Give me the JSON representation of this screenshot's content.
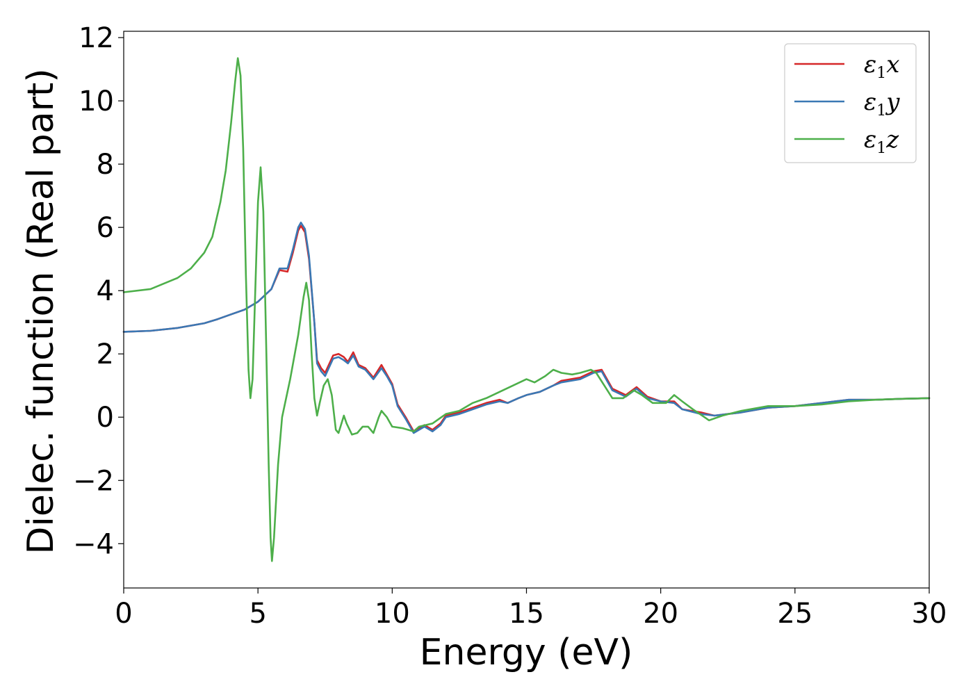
{
  "chart_data": {
    "type": "line",
    "title": "",
    "xlabel": "Energy (eV)",
    "ylabel": "Dielec. function (Real part)",
    "xlim": [
      0,
      30
    ],
    "ylim": [
      -5.4,
      12.2
    ],
    "xticks": [
      0,
      5,
      10,
      15,
      20,
      25,
      30
    ],
    "yticks": [
      -4,
      -2,
      0,
      2,
      4,
      6,
      8,
      10,
      12
    ],
    "ytick_labels": [
      "−4",
      "−2",
      "0",
      "2",
      "4",
      "6",
      "8",
      "10",
      "12"
    ],
    "grid": false,
    "legend_position": "top-right",
    "series": [
      {
        "name": "x",
        "legend_symbol": "ε",
        "legend_sub": "1",
        "color": "#d62728",
        "points": [
          [
            0,
            2.7
          ],
          [
            1,
            2.73
          ],
          [
            2,
            2.82
          ],
          [
            3,
            2.97
          ],
          [
            3.5,
            3.1
          ],
          [
            4,
            3.25
          ],
          [
            4.5,
            3.4
          ],
          [
            5,
            3.65
          ],
          [
            5.5,
            4.05
          ],
          [
            5.8,
            4.65
          ],
          [
            6.1,
            4.6
          ],
          [
            6.3,
            5.2
          ],
          [
            6.5,
            5.9
          ],
          [
            6.6,
            6.05
          ],
          [
            6.75,
            5.85
          ],
          [
            6.9,
            5.0
          ],
          [
            7.1,
            3.0
          ],
          [
            7.2,
            1.8
          ],
          [
            7.35,
            1.55
          ],
          [
            7.5,
            1.4
          ],
          [
            7.8,
            1.95
          ],
          [
            8.0,
            2.0
          ],
          [
            8.2,
            1.9
          ],
          [
            8.35,
            1.75
          ],
          [
            8.55,
            2.05
          ],
          [
            8.75,
            1.65
          ],
          [
            9.0,
            1.55
          ],
          [
            9.3,
            1.25
          ],
          [
            9.6,
            1.65
          ],
          [
            9.8,
            1.35
          ],
          [
            10.0,
            1.05
          ],
          [
            10.2,
            0.4
          ],
          [
            10.5,
            0.0
          ],
          [
            10.8,
            -0.45
          ],
          [
            11.0,
            -0.35
          ],
          [
            11.2,
            -0.25
          ],
          [
            11.5,
            -0.4
          ],
          [
            11.8,
            -0.2
          ],
          [
            12.0,
            0.05
          ],
          [
            12.5,
            0.15
          ],
          [
            13.0,
            0.3
          ],
          [
            13.5,
            0.45
          ],
          [
            14.0,
            0.55
          ],
          [
            14.3,
            0.45
          ],
          [
            14.7,
            0.6
          ],
          [
            15.0,
            0.7
          ],
          [
            15.5,
            0.8
          ],
          [
            16.0,
            1.0
          ],
          [
            16.3,
            1.15
          ],
          [
            17.0,
            1.25
          ],
          [
            17.5,
            1.45
          ],
          [
            17.8,
            1.5
          ],
          [
            18.2,
            0.9
          ],
          [
            18.7,
            0.7
          ],
          [
            19.1,
            0.95
          ],
          [
            19.5,
            0.65
          ],
          [
            20.0,
            0.5
          ],
          [
            20.5,
            0.5
          ],
          [
            20.8,
            0.25
          ],
          [
            21.5,
            0.15
          ],
          [
            22.0,
            0.05
          ],
          [
            22.5,
            0.1
          ],
          [
            23.0,
            0.15
          ],
          [
            24.0,
            0.3
          ],
          [
            25.0,
            0.35
          ],
          [
            26.0,
            0.45
          ],
          [
            27.0,
            0.55
          ],
          [
            28.0,
            0.55
          ],
          [
            29.0,
            0.58
          ],
          [
            30.0,
            0.6
          ]
        ]
      },
      {
        "name": "y",
        "legend_symbol": "ε",
        "legend_sub": "1",
        "color": "#3a78b4",
        "points": [
          [
            0,
            2.7
          ],
          [
            1,
            2.73
          ],
          [
            2,
            2.82
          ],
          [
            3,
            2.97
          ],
          [
            3.5,
            3.1
          ],
          [
            4,
            3.25
          ],
          [
            4.5,
            3.4
          ],
          [
            5,
            3.65
          ],
          [
            5.5,
            4.05
          ],
          [
            5.8,
            4.7
          ],
          [
            6.1,
            4.7
          ],
          [
            6.3,
            5.3
          ],
          [
            6.5,
            6.0
          ],
          [
            6.6,
            6.15
          ],
          [
            6.75,
            5.95
          ],
          [
            6.9,
            5.1
          ],
          [
            7.1,
            3.0
          ],
          [
            7.2,
            1.7
          ],
          [
            7.35,
            1.45
          ],
          [
            7.5,
            1.3
          ],
          [
            7.8,
            1.85
          ],
          [
            8.0,
            1.9
          ],
          [
            8.2,
            1.8
          ],
          [
            8.35,
            1.7
          ],
          [
            8.55,
            1.95
          ],
          [
            8.75,
            1.6
          ],
          [
            9.0,
            1.5
          ],
          [
            9.3,
            1.2
          ],
          [
            9.6,
            1.55
          ],
          [
            9.8,
            1.3
          ],
          [
            10.0,
            1.0
          ],
          [
            10.2,
            0.35
          ],
          [
            10.5,
            -0.05
          ],
          [
            10.8,
            -0.5
          ],
          [
            11.0,
            -0.4
          ],
          [
            11.2,
            -0.3
          ],
          [
            11.5,
            -0.45
          ],
          [
            11.8,
            -0.25
          ],
          [
            12.0,
            0.0
          ],
          [
            12.5,
            0.1
          ],
          [
            13.0,
            0.25
          ],
          [
            13.5,
            0.4
          ],
          [
            14.0,
            0.5
          ],
          [
            14.3,
            0.45
          ],
          [
            14.7,
            0.6
          ],
          [
            15.0,
            0.7
          ],
          [
            15.5,
            0.8
          ],
          [
            16.0,
            1.0
          ],
          [
            16.3,
            1.1
          ],
          [
            17.0,
            1.2
          ],
          [
            17.5,
            1.4
          ],
          [
            17.8,
            1.45
          ],
          [
            18.2,
            0.85
          ],
          [
            18.7,
            0.65
          ],
          [
            19.1,
            0.9
          ],
          [
            19.5,
            0.6
          ],
          [
            20.0,
            0.5
          ],
          [
            20.5,
            0.45
          ],
          [
            20.8,
            0.25
          ],
          [
            21.5,
            0.1
          ],
          [
            22.0,
            0.05
          ],
          [
            22.5,
            0.1
          ],
          [
            23.0,
            0.15
          ],
          [
            24.0,
            0.3
          ],
          [
            25.0,
            0.35
          ],
          [
            26.0,
            0.45
          ],
          [
            27.0,
            0.55
          ],
          [
            28.0,
            0.55
          ],
          [
            29.0,
            0.58
          ],
          [
            30.0,
            0.6
          ]
        ]
      },
      {
        "name": "z",
        "legend_symbol": "ε",
        "legend_sub": "1",
        "color": "#4daf4a",
        "points": [
          [
            0,
            3.95
          ],
          [
            1,
            4.05
          ],
          [
            2,
            4.4
          ],
          [
            2.5,
            4.7
          ],
          [
            3.0,
            5.2
          ],
          [
            3.3,
            5.7
          ],
          [
            3.6,
            6.8
          ],
          [
            3.8,
            7.8
          ],
          [
            4.0,
            9.3
          ],
          [
            4.15,
            10.6
          ],
          [
            4.25,
            11.35
          ],
          [
            4.35,
            10.8
          ],
          [
            4.45,
            8.5
          ],
          [
            4.55,
            4.5
          ],
          [
            4.65,
            1.5
          ],
          [
            4.72,
            0.6
          ],
          [
            4.8,
            1.2
          ],
          [
            4.9,
            4.0
          ],
          [
            5.0,
            6.8
          ],
          [
            5.1,
            7.9
          ],
          [
            5.2,
            6.5
          ],
          [
            5.3,
            2.5
          ],
          [
            5.4,
            -1.5
          ],
          [
            5.47,
            -3.8
          ],
          [
            5.52,
            -4.55
          ],
          [
            5.6,
            -3.8
          ],
          [
            5.75,
            -1.5
          ],
          [
            5.9,
            0.0
          ],
          [
            6.2,
            1.2
          ],
          [
            6.5,
            2.6
          ],
          [
            6.7,
            3.8
          ],
          [
            6.8,
            4.25
          ],
          [
            6.9,
            3.7
          ],
          [
            7.0,
            2.0
          ],
          [
            7.1,
            0.6
          ],
          [
            7.2,
            0.05
          ],
          [
            7.3,
            0.45
          ],
          [
            7.45,
            1.0
          ],
          [
            7.6,
            1.2
          ],
          [
            7.75,
            0.7
          ],
          [
            7.9,
            -0.4
          ],
          [
            8.0,
            -0.5
          ],
          [
            8.2,
            0.05
          ],
          [
            8.3,
            -0.2
          ],
          [
            8.5,
            -0.55
          ],
          [
            8.7,
            -0.5
          ],
          [
            8.9,
            -0.3
          ],
          [
            9.1,
            -0.3
          ],
          [
            9.3,
            -0.5
          ],
          [
            9.5,
            0.0
          ],
          [
            9.6,
            0.2
          ],
          [
            9.8,
            0.0
          ],
          [
            10.0,
            -0.3
          ],
          [
            10.4,
            -0.35
          ],
          [
            10.8,
            -0.45
          ],
          [
            11.0,
            -0.3
          ],
          [
            11.5,
            -0.2
          ],
          [
            12.0,
            0.1
          ],
          [
            12.5,
            0.2
          ],
          [
            13.0,
            0.45
          ],
          [
            13.5,
            0.6
          ],
          [
            14.0,
            0.8
          ],
          [
            14.5,
            1.0
          ],
          [
            15.0,
            1.2
          ],
          [
            15.3,
            1.1
          ],
          [
            15.7,
            1.3
          ],
          [
            16.0,
            1.5
          ],
          [
            16.3,
            1.4
          ],
          [
            16.7,
            1.35
          ],
          [
            17.0,
            1.4
          ],
          [
            17.4,
            1.5
          ],
          [
            17.6,
            1.4
          ],
          [
            17.9,
            1.0
          ],
          [
            18.2,
            0.6
          ],
          [
            18.6,
            0.6
          ],
          [
            19.0,
            0.85
          ],
          [
            19.3,
            0.7
          ],
          [
            19.7,
            0.45
          ],
          [
            20.2,
            0.45
          ],
          [
            20.5,
            0.7
          ],
          [
            20.8,
            0.5
          ],
          [
            21.2,
            0.25
          ],
          [
            21.8,
            -0.1
          ],
          [
            22.3,
            0.05
          ],
          [
            23.0,
            0.2
          ],
          [
            24.0,
            0.35
          ],
          [
            25.0,
            0.35
          ],
          [
            26.0,
            0.4
          ],
          [
            27.0,
            0.5
          ],
          [
            28.0,
            0.55
          ],
          [
            29.0,
            0.58
          ],
          [
            30.0,
            0.6
          ]
        ]
      }
    ]
  }
}
